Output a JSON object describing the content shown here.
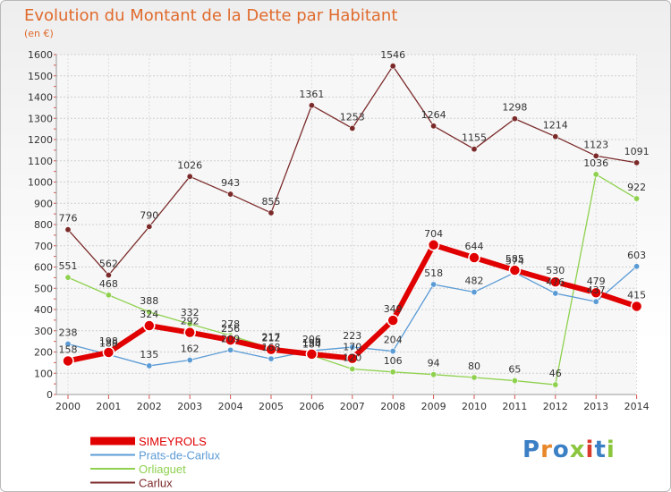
{
  "title": "Evolution du Montant de la Dette par Habitant",
  "unit": "(en €)",
  "logo": {
    "text": "Proxiti",
    "colors": [
      "#3b7fc4",
      "#e8882a",
      "#3b7fc4",
      "#8cc63f",
      "#d93a2b",
      "#3b7fc4",
      "#8cc63f"
    ]
  },
  "chart_data": {
    "type": "line",
    "title": "Evolution du Montant de la Dette par Habitant",
    "ylabel": "(en €)",
    "xlabel": "",
    "ylim": [
      0,
      1600
    ],
    "yticks": [
      0,
      100,
      200,
      300,
      400,
      500,
      600,
      700,
      800,
      900,
      1000,
      1100,
      1200,
      1300,
      1400,
      1500,
      1600
    ],
    "grid": true,
    "legend_position": "bottom-left",
    "x": [
      "2000",
      "2001",
      "2002",
      "2003",
      "2004",
      "2005",
      "2006",
      "2007",
      "2008",
      "2009",
      "2010",
      "2011",
      "2012",
      "2013",
      "2014"
    ],
    "series": [
      {
        "name": "Carlux",
        "color": "#7b2a2a",
        "values": [
          776,
          562,
          790,
          1026,
          943,
          855,
          1361,
          1253,
          1546,
          1264,
          1155,
          1298,
          1214,
          1123,
          1091
        ]
      },
      {
        "name": "Orliaguet",
        "color": "#8fd14f",
        "values": [
          551,
          468,
          388,
          332,
          278,
          217,
          184,
          120,
          106,
          94,
          80,
          65,
          46,
          1036,
          922
        ]
      },
      {
        "name": "Prats-de-Carlux",
        "color": "#5b9bd5",
        "values": [
          238,
          188,
          135,
          162,
          209,
          168,
          206,
          223,
          204,
          518,
          482,
          574,
          476,
          437,
          603
        ]
      },
      {
        "name": "SIMEYROLS",
        "color": "#e00000",
        "values": [
          158,
          198,
          324,
          292,
          256,
          212,
          190,
          170,
          349,
          704,
          644,
          585,
          530,
          479,
          415
        ]
      }
    ],
    "legend_order": [
      "SIMEYROLS",
      "Prats-de-Carlux",
      "Orliaguet",
      "Carlux"
    ]
  }
}
